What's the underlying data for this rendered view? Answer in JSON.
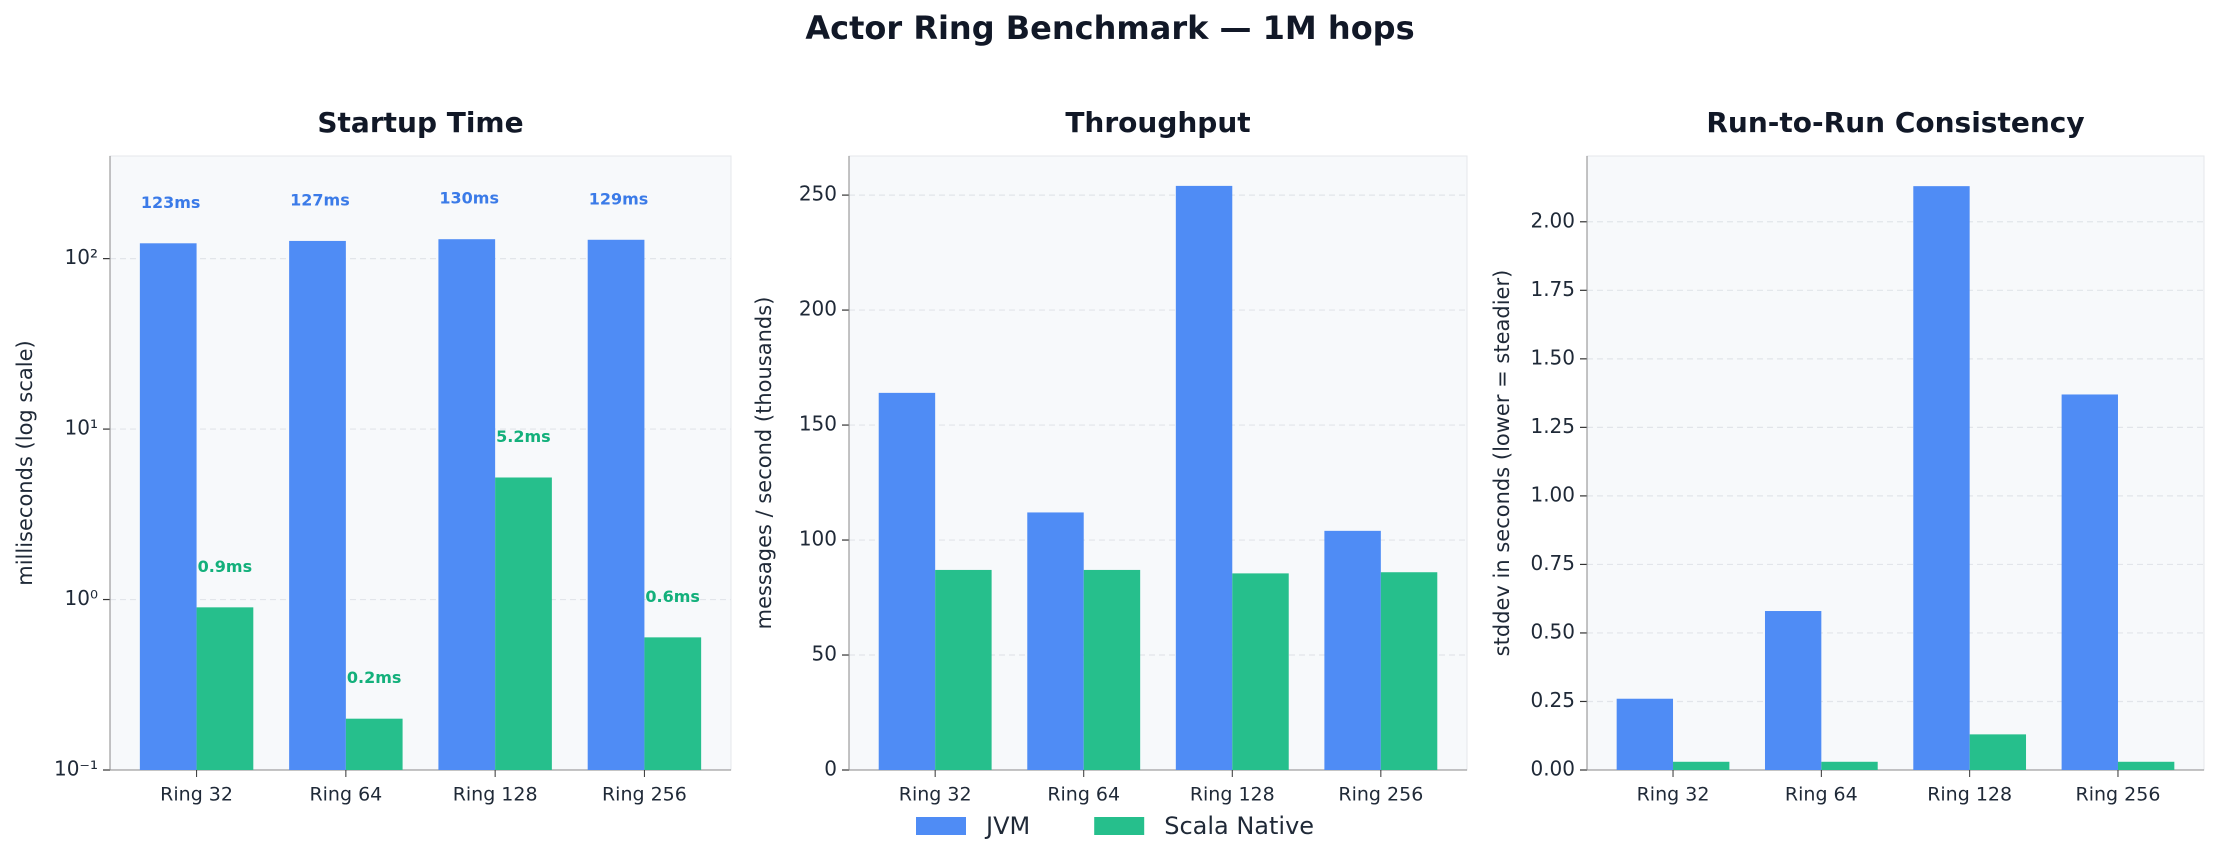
{
  "title": "Actor Ring Benchmark — 1M hops",
  "chart_data": [
    {
      "type": "bar",
      "title": "Startup Time",
      "ylabel": "milliseconds (log scale)",
      "log": true,
      "grid": true,
      "categories": [
        "Ring 32",
        "Ring 64",
        "Ring 128",
        "Ring 256"
      ],
      "series": [
        {
          "name": "JVM",
          "color": "#4f8cf5",
          "label_color": "#3b7be8",
          "values": [
            123,
            127,
            130,
            129
          ],
          "value_labels": [
            "123ms",
            "127ms",
            "130ms",
            "129ms"
          ]
        },
        {
          "name": "Scala Native",
          "color": "#26bf8c",
          "label_color": "#13b07b",
          "values": [
            0.9,
            0.2,
            5.2,
            0.6
          ],
          "value_labels": [
            "0.9ms",
            "0.2ms",
            "5.2ms",
            "0.6ms"
          ]
        }
      ],
      "ylim": [
        0.1,
        400
      ],
      "yticks": [
        {
          "value": 0.1,
          "label": "10⁻¹"
        },
        {
          "value": 1,
          "label": "10⁰"
        },
        {
          "value": 10,
          "label": "10¹"
        },
        {
          "value": 100,
          "label": "10²"
        }
      ]
    },
    {
      "type": "bar",
      "title": "Throughput",
      "ylabel": "messages / second (thousands)",
      "log": false,
      "grid": true,
      "categories": [
        "Ring 32",
        "Ring 64",
        "Ring 128",
        "Ring 256"
      ],
      "series": [
        {
          "name": "JVM",
          "color": "#4f8cf5",
          "values": [
            164,
            112,
            254,
            104
          ]
        },
        {
          "name": "Scala Native",
          "color": "#26bf8c",
          "values": [
            87,
            87,
            85.5,
            86
          ]
        }
      ],
      "ylim": [
        0,
        267
      ],
      "yticks": [
        0,
        50,
        100,
        150,
        200,
        250
      ]
    },
    {
      "type": "bar",
      "title": "Run-to-Run Consistency",
      "ylabel": "stddev in seconds (lower = steadier)",
      "log": false,
      "grid": true,
      "categories": [
        "Ring 32",
        "Ring 64",
        "Ring 128",
        "Ring 256"
      ],
      "series": [
        {
          "name": "JVM",
          "color": "#4f8cf5",
          "values": [
            0.26,
            0.58,
            2.13,
            1.37
          ]
        },
        {
          "name": "Scala Native",
          "color": "#26bf8c",
          "values": [
            0.03,
            0.03,
            0.13,
            0.03
          ]
        }
      ],
      "ylim": [
        0,
        2.24
      ],
      "yticks": [
        {
          "value": 0,
          "label": "0.00"
        },
        {
          "value": 0.25,
          "label": "0.25"
        },
        {
          "value": 0.5,
          "label": "0.50"
        },
        {
          "value": 0.75,
          "label": "0.75"
        },
        {
          "value": 1,
          "label": "1.00"
        },
        {
          "value": 1.25,
          "label": "1.25"
        },
        {
          "value": 1.5,
          "label": "1.50"
        },
        {
          "value": 1.75,
          "label": "1.75"
        },
        {
          "value": 2,
          "label": "2.00"
        }
      ]
    }
  ]
}
